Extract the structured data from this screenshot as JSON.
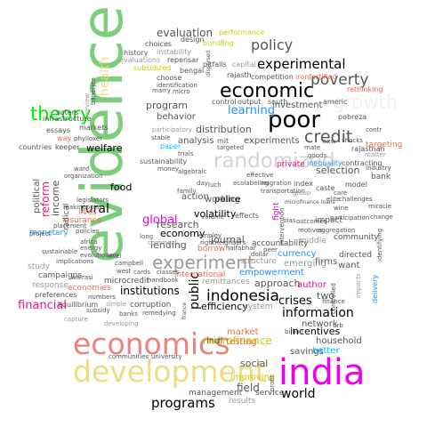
{
  "words": [
    {
      "text": "evidence",
      "color": "#7ccd7c"
    },
    {
      "text": "economics",
      "color": "#f08080"
    },
    {
      "text": "development",
      "color": "#eedc82"
    },
    {
      "text": "india",
      "color": "#ee00ee"
    },
    {
      "text": "economic",
      "color": "#000000"
    },
    {
      "text": "poor",
      "color": "#000000"
    },
    {
      "text": "growth",
      "color": "#f0f0f0"
    },
    {
      "text": "randomized",
      "color": "#d3d3d3"
    },
    {
      "text": "theory",
      "color": "#00ee00"
    },
    {
      "text": "experiment",
      "color": "#999999"
    },
    {
      "text": "poverty",
      "color": "#555555"
    },
    {
      "text": "policy",
      "color": "#555555"
    },
    {
      "text": "experimental",
      "color": "#000000"
    },
    {
      "text": "credit",
      "color": "#555555"
    },
    {
      "text": "indonesia",
      "color": "#000000"
    },
    {
      "text": "programs",
      "color": "#000000"
    },
    {
      "text": "world",
      "color": "#000000"
    },
    {
      "text": "information",
      "color": "#000000"
    },
    {
      "text": "learning",
      "color": "#1e90ff"
    },
    {
      "text": "health",
      "color": "#eedc82"
    },
    {
      "text": "rural",
      "color": "#000000"
    },
    {
      "text": "public",
      "color": "#000000"
    },
    {
      "text": "evaluation",
      "color": "#555555"
    },
    {
      "text": "global",
      "color": "#ee00ee"
    },
    {
      "text": "economy",
      "color": "#000000"
    },
    {
      "text": "microfinance",
      "color": "#cdcd00"
    },
    {
      "text": "financial",
      "color": "#ee1289"
    },
    {
      "text": "social",
      "color": "#555555"
    },
    {
      "text": "field",
      "color": "#555555"
    },
    {
      "text": "institutions",
      "color": "#000000"
    },
    {
      "text": "research",
      "color": "#555555"
    },
    {
      "text": "journal",
      "color": "#555555"
    },
    {
      "text": "lending",
      "color": "#555555"
    },
    {
      "text": "crises",
      "color": "#000000"
    },
    {
      "text": "two",
      "color": "#555555"
    },
    {
      "text": "reform",
      "color": "#ee1289"
    },
    {
      "text": "welfare",
      "color": "#000000"
    },
    {
      "text": "volatility",
      "color": "#000000"
    },
    {
      "text": "income",
      "color": "#555555"
    },
    {
      "text": "program",
      "color": "#555555"
    },
    {
      "text": "distribution",
      "color": "#555555"
    },
    {
      "text": "food",
      "color": "#000000"
    },
    {
      "text": "selection",
      "color": "#555555"
    },
    {
      "text": "efficiency",
      "color": "#000000"
    },
    {
      "text": "incentives",
      "color": "#000000"
    },
    {
      "text": "approach",
      "color": "#555555"
    },
    {
      "text": "author",
      "color": "#ee1289"
    },
    {
      "text": "political",
      "color": "#555555"
    },
    {
      "text": "analysis",
      "color": "#555555"
    },
    {
      "text": "behavior",
      "color": "#555555"
    },
    {
      "text": "investment",
      "color": "#555555"
    },
    {
      "text": "experiments",
      "color": "#555555"
    },
    {
      "text": "police",
      "color": "#000000"
    },
    {
      "text": "working",
      "color": "#555555"
    },
    {
      "text": "action",
      "color": "#555555"
    },
    {
      "text": "market",
      "color": "#ee6a50"
    },
    {
      "text": "indi",
      "color": "#555555"
    },
    {
      "text": "testing",
      "color": "#ee6a50"
    },
    {
      "text": "network",
      "color": "#555555"
    },
    {
      "text": "household",
      "color": "#555555"
    },
    {
      "text": "savings",
      "color": "#555555"
    },
    {
      "text": "better",
      "color": "#00bfff"
    },
    {
      "text": "improving",
      "color": "#cdcd00"
    },
    {
      "text": "service",
      "color": "#555555"
    },
    {
      "text": "management",
      "color": "#555555"
    },
    {
      "text": "results",
      "color": "#999999"
    },
    {
      "text": "empowerment",
      "color": "#1e90ff"
    },
    {
      "text": "currency",
      "color": "#1e90ff"
    },
    {
      "text": "emerging",
      "color": "#999999"
    },
    {
      "text": "firms",
      "color": "#555555"
    },
    {
      "text": "want",
      "color": "#555555"
    },
    {
      "text": "directed",
      "color": "#555555"
    },
    {
      "text": "middle",
      "color": "#999999"
    },
    {
      "text": "community",
      "color": "#555555"
    },
    {
      "text": "accountability",
      "color": "#555555"
    },
    {
      "text": "structure",
      "color": "#999999"
    },
    {
      "text": "borrow",
      "color": "#ee6a50"
    },
    {
      "text": "international",
      "color": "#ee6a50"
    },
    {
      "text": "remittances",
      "color": "#999999"
    },
    {
      "text": "system",
      "color": "#999999"
    },
    {
      "text": "corruption",
      "color": "#555555"
    },
    {
      "text": "microcredit",
      "color": "#555555"
    },
    {
      "text": "economies",
      "color": "#ee6a50"
    },
    {
      "text": "response",
      "color": "#999999"
    },
    {
      "text": "study",
      "color": "#999999"
    },
    {
      "text": "campaigns",
      "color": "#555555"
    },
    {
      "text": "preferences",
      "color": "#555555"
    },
    {
      "text": "equilibrium",
      "color": "#555555"
    },
    {
      "text": "monetary",
      "color": "#1e90ff"
    },
    {
      "text": "insurance",
      "color": "#ee6a50"
    },
    {
      "text": "lives",
      "color": "#ee6a50"
    },
    {
      "text": "radical",
      "color": "#555555"
    },
    {
      "text": "impact",
      "color": "#555555"
    },
    {
      "text": "microfinance loans",
      "color": "#555555"
    },
    {
      "text": "private",
      "color": "#ee1289"
    },
    {
      "text": "control",
      "color": "#555555"
    },
    {
      "text": "output",
      "color": "#555555"
    },
    {
      "text": "south",
      "color": "#555555"
    },
    {
      "text": "americ",
      "color": "#555555"
    },
    {
      "text": "pobreza",
      "color": "#555555"
    },
    {
      "text": "rethinking",
      "color": "#ee6a50"
    },
    {
      "text": "ironfortified",
      "color": "#ee6a50"
    },
    {
      "text": "dispersed",
      "color": "#555555"
    },
    {
      "text": "competition",
      "color": "#555555"
    },
    {
      "text": "capital",
      "color": "#999999"
    },
    {
      "text": "rajasth",
      "color": "#555555"
    },
    {
      "text": "pitfalls",
      "color": "#555555"
    },
    {
      "text": "bundling",
      "color": "#cdcd00"
    },
    {
      "text": "performance",
      "color": "#cdcd00"
    },
    {
      "text": "design",
      "color": "#555555"
    },
    {
      "text": "choices",
      "color": "#555555"
    },
    {
      "text": "repensar",
      "color": "#555555"
    },
    {
      "text": "instability",
      "color": "#999999"
    },
    {
      "text": "history",
      "color": "#555555"
    },
    {
      "text": "evaluations",
      "color": "#999999"
    },
    {
      "text": "subsidized",
      "color": "#cdcd00"
    },
    {
      "text": "bengal",
      "color": "#555555"
    },
    {
      "text": "choose",
      "color": "#555555"
    },
    {
      "text": "identification",
      "color": "#555555"
    },
    {
      "text": "marry",
      "color": "#555555"
    },
    {
      "text": "micro",
      "color": "#555555"
    },
    {
      "text": "voters",
      "color": "#555555"
    },
    {
      "text": "infrastructure",
      "color": "#555555"
    },
    {
      "text": "essays",
      "color": "#555555"
    },
    {
      "text": "way",
      "color": "#ee6a50"
    },
    {
      "text": "markets",
      "color": "#555555"
    },
    {
      "text": "review",
      "color": "#999999"
    },
    {
      "text": "banerjee",
      "color": "#555555"
    },
    {
      "text": "countries",
      "color": "#555555"
    },
    {
      "text": "keeper",
      "color": "#555555"
    },
    {
      "text": "phylloxer",
      "color": "#555555"
    },
    {
      "text": "organization",
      "color": "#555555"
    },
    {
      "text": "legislators",
      "color": "#555555"
    },
    {
      "text": "makingopen",
      "color": "#555555"
    },
    {
      "text": "project",
      "color": "#555555"
    },
    {
      "text": "placement",
      "color": "#555555"
    },
    {
      "text": "walrasi",
      "color": "#555555"
    },
    {
      "text": "africa",
      "color": "#555555"
    },
    {
      "text": "energy",
      "color": "#555555"
    },
    {
      "text": "sustainable",
      "color": "#555555"
    },
    {
      "text": "implications",
      "color": "#555555"
    },
    {
      "text": "policies",
      "color": "#555555"
    },
    {
      "text": "evolutionary",
      "color": "#555555"
    },
    {
      "text": "numbers",
      "color": "#555555"
    },
    {
      "text": "elite",
      "color": "#555555"
    },
    {
      "text": "subsidy",
      "color": "#555555"
    },
    {
      "text": "capture",
      "color": "#999999"
    },
    {
      "text": "developing",
      "color": "#999999"
    },
    {
      "text": "remedying",
      "color": "#555555"
    },
    {
      "text": "simple",
      "color": "#999999"
    },
    {
      "text": "banks",
      "color": "#555555"
    },
    {
      "text": "communities",
      "color": "#555555"
    },
    {
      "text": "university",
      "color": "#555555"
    },
    {
      "text": "handbook",
      "color": "#555555"
    },
    {
      "text": "classes",
      "color": "#555555"
    },
    {
      "text": "cards",
      "color": "#555555"
    },
    {
      "text": "west",
      "color": "#555555"
    },
    {
      "text": "campbell",
      "color": "#555555"
    },
    {
      "text": "level",
      "color": "#555555"
    },
    {
      "text": "long",
      "color": "#555555"
    },
    {
      "text": "comment",
      "color": "#999999"
    },
    {
      "text": "paper",
      "color": "#00bfff"
    },
    {
      "text": "sustainability",
      "color": "#555555"
    },
    {
      "text": "stable",
      "color": "#555555"
    },
    {
      "text": "participatory",
      "color": "#999999"
    },
    {
      "text": "trials",
      "color": "#555555"
    },
    {
      "text": "money",
      "color": "#555555"
    },
    {
      "text": "algebraic",
      "color": "#555555"
    },
    {
      "text": "family",
      "color": "#555555"
    },
    {
      "text": "volume",
      "color": "#555555"
    },
    {
      "text": "day",
      "color": "#555555"
    },
    {
      "text": "luch",
      "color": "#555555"
    },
    {
      "text": "mit",
      "color": "#555555"
    },
    {
      "text": "targeted",
      "color": "#555555"
    },
    {
      "text": "effective",
      "color": "#555555"
    },
    {
      "text": "ecolabeling",
      "color": "#555555"
    },
    {
      "text": "migration",
      "color": "#555555"
    },
    {
      "text": "transportation",
      "color": "#555555"
    },
    {
      "text": "index",
      "color": "#555555"
    },
    {
      "text": "caste",
      "color": "#555555"
    },
    {
      "text": "group",
      "color": "#999999"
    },
    {
      "text": "care",
      "color": "#555555"
    },
    {
      "text": "model",
      "color": "#555555"
    },
    {
      "text": "bank",
      "color": "#555555"
    },
    {
      "text": "rajasthan",
      "color": "#555555"
    },
    {
      "text": "industry",
      "color": "#555555"
    },
    {
      "text": "targeting",
      "color": "#ee6a50"
    },
    {
      "text": "matter",
      "color": "#999999"
    },
    {
      "text": "contr",
      "color": "#555555"
    },
    {
      "text": "shocks",
      "color": "#555555"
    },
    {
      "text": "new",
      "color": "#555555"
    },
    {
      "text": "mate",
      "color": "#555555"
    },
    {
      "text": "goods",
      "color": "#555555"
    },
    {
      "text": "inequality",
      "color": "#1e90ff"
    },
    {
      "text": "contracting",
      "color": "#555555"
    },
    {
      "text": "challenges",
      "color": "#555555"
    },
    {
      "text": "miracle",
      "color": "#555555"
    },
    {
      "text": "change",
      "color": "#555555"
    },
    {
      "text": "identifying",
      "color": "#555555"
    },
    {
      "text": "delivery",
      "color": "#1e90ff"
    },
    {
      "text": "impacts",
      "color": "#999999"
    },
    {
      "text": "controlled",
      "color": "#555555"
    },
    {
      "text": "outcomes",
      "color": "#555555"
    },
    {
      "text": "aggregation",
      "color": "#555555"
    },
    {
      "text": "participation",
      "color": "#555555"
    },
    {
      "text": "wine",
      "color": "#555555"
    },
    {
      "text": "motives",
      "color": "#555555"
    },
    {
      "text": "intervention",
      "color": "#555555"
    },
    {
      "text": "bias",
      "color": "#555555"
    },
    {
      "text": "peer",
      "color": "#555555"
    },
    {
      "text": "dollar",
      "color": "#555555"
    },
    {
      "text": "fight",
      "color": "#ee00ee"
    },
    {
      "text": "halfabhar",
      "color": "#555555"
    },
    {
      "text": "rightneighbors",
      "color": "#555555"
    },
    {
      "text": "employ",
      "color": "#555555"
    },
    {
      "text": "effects",
      "color": "#555555"
    },
    {
      "text": "billion",
      "color": "#555555"
    },
    {
      "text": "finance",
      "color": "#555555"
    },
    {
      "text": "urb",
      "color": "#555555"
    },
    {
      "text": "profit",
      "color": "#555555"
    },
    {
      "text": "ward",
      "color": "#555555"
    },
    {
      "text": "france",
      "color": "#555555"
    }
  ]
}
